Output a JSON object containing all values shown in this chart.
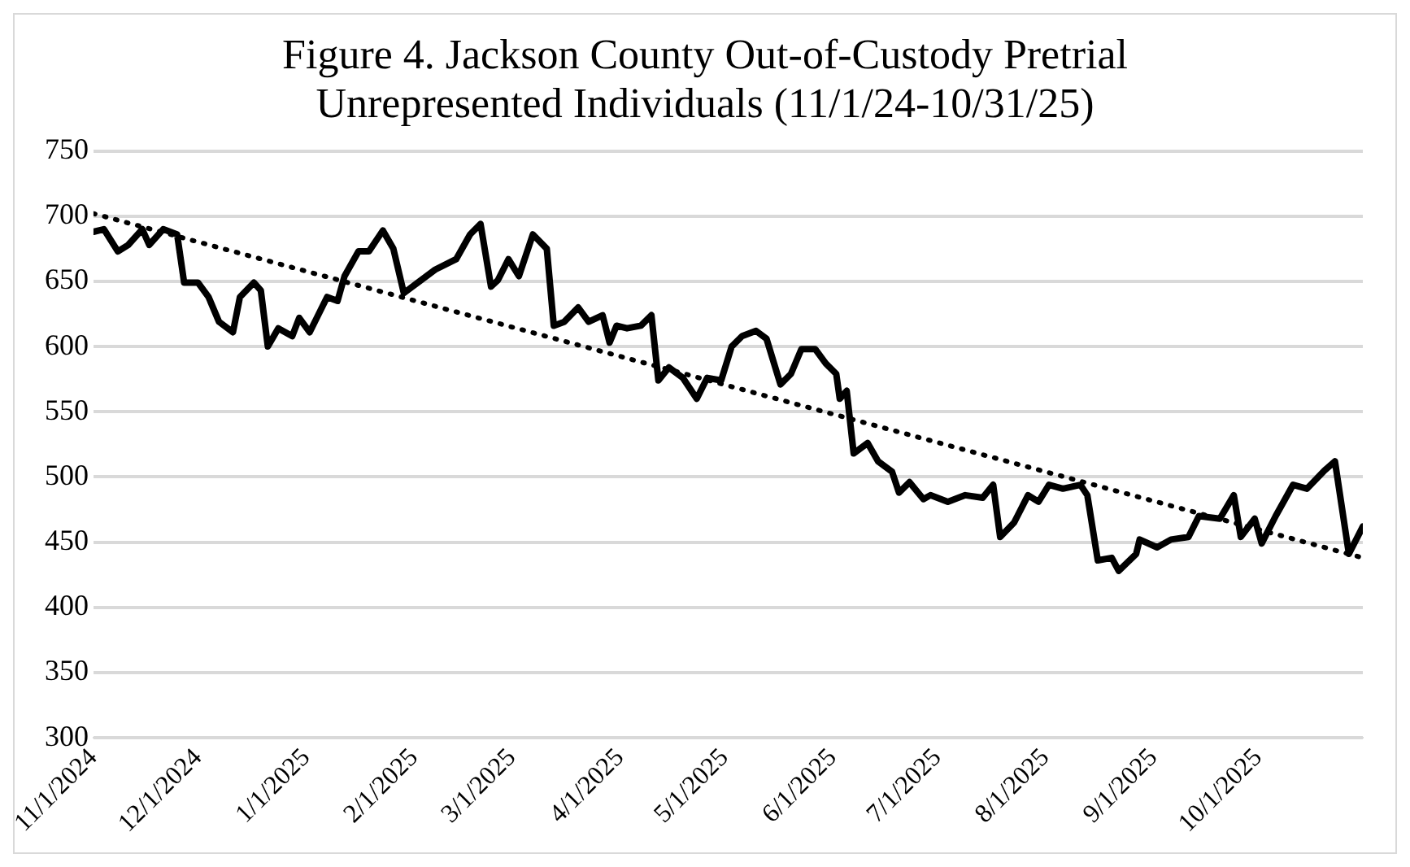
{
  "chart_data": {
    "type": "line",
    "title": "Figure 4. Jackson County Out-of-Custody Pretrial Unrepresented Individuals (11/1/24-10/31/25)",
    "xlim": [
      "2024-11-01",
      "2025-10-31"
    ],
    "xticks": [
      {
        "value": "2024-11-01",
        "label": "11/1/2024"
      },
      {
        "value": "2024-12-01",
        "label": "12/1/2024"
      },
      {
        "value": "2025-01-01",
        "label": "1/1/2025"
      },
      {
        "value": "2025-02-01",
        "label": "2/1/2025"
      },
      {
        "value": "2025-03-01",
        "label": "3/1/2025"
      },
      {
        "value": "2025-04-01",
        "label": "4/1/2025"
      },
      {
        "value": "2025-05-01",
        "label": "5/1/2025"
      },
      {
        "value": "2025-06-01",
        "label": "6/1/2025"
      },
      {
        "value": "2025-07-01",
        "label": "7/1/2025"
      },
      {
        "value": "2025-08-01",
        "label": "8/1/2025"
      },
      {
        "value": "2025-09-01",
        "label": "9/1/2025"
      },
      {
        "value": "2025-10-01",
        "label": "10/1/2025"
      }
    ],
    "ylim": [
      300,
      750
    ],
    "yticks": [
      300,
      350,
      400,
      450,
      500,
      550,
      600,
      650,
      700,
      750
    ],
    "grid": "y",
    "legend": false,
    "marker": "none",
    "series": [
      {
        "color": "#000000",
        "line_style": "solid",
        "x": [
          "2024-11-01",
          "2024-11-04",
          "2024-11-08",
          "2024-11-11",
          "2024-11-15",
          "2024-11-17",
          "2024-11-21",
          "2024-11-25",
          "2024-11-27",
          "2024-12-01",
          "2024-12-04",
          "2024-12-07",
          "2024-12-11",
          "2024-12-13",
          "2024-12-17",
          "2024-12-19",
          "2024-12-21",
          "2024-12-24",
          "2024-12-28",
          "2024-12-30",
          "2025-01-02",
          "2025-01-07",
          "2025-01-10",
          "2025-01-12",
          "2025-01-16",
          "2025-01-19",
          "2025-01-23",
          "2025-01-26",
          "2025-01-29",
          "2025-02-02",
          "2025-02-07",
          "2025-02-13",
          "2025-02-17",
          "2025-02-20",
          "2025-02-23",
          "2025-02-25",
          "2025-02-28",
          "2025-03-03",
          "2025-03-07",
          "2025-03-11",
          "2025-03-13",
          "2025-03-16",
          "2025-03-20",
          "2025-03-23",
          "2025-03-27",
          "2025-03-29",
          "2025-03-31",
          "2025-04-03",
          "2025-04-07",
          "2025-04-10",
          "2025-04-12",
          "2025-04-15",
          "2025-04-19",
          "2025-04-23",
          "2025-04-26",
          "2025-04-30",
          "2025-05-03",
          "2025-05-06",
          "2025-05-10",
          "2025-05-13",
          "2025-05-17",
          "2025-05-20",
          "2025-05-23",
          "2025-05-27",
          "2025-05-30",
          "2025-06-02",
          "2025-06-03",
          "2025-06-05",
          "2025-06-07",
          "2025-06-11",
          "2025-06-14",
          "2025-06-18",
          "2025-06-20",
          "2025-06-23",
          "2025-06-27",
          "2025-06-29",
          "2025-07-04",
          "2025-07-09",
          "2025-07-14",
          "2025-07-17",
          "2025-07-19",
          "2025-07-23",
          "2025-07-27",
          "2025-07-30",
          "2025-08-02",
          "2025-08-06",
          "2025-08-11",
          "2025-08-13",
          "2025-08-16",
          "2025-08-20",
          "2025-08-22",
          "2025-08-27",
          "2025-08-28",
          "2025-09-02",
          "2025-09-06",
          "2025-09-11",
          "2025-09-14",
          "2025-09-20",
          "2025-09-24",
          "2025-09-26",
          "2025-09-30",
          "2025-10-02",
          "2025-10-06",
          "2025-10-11",
          "2025-10-15",
          "2025-10-20",
          "2025-10-23",
          "2025-10-27",
          "2025-10-31"
        ],
        "values": [
          688,
          690,
          673,
          678,
          690,
          678,
          690,
          686,
          649,
          649,
          638,
          619,
          611,
          638,
          649,
          643,
          600,
          614,
          608,
          622,
          611,
          638,
          635,
          654,
          673,
          673,
          689,
          675,
          641,
          649,
          659,
          667,
          686,
          694,
          646,
          651,
          667,
          654,
          686,
          675,
          616,
          619,
          630,
          619,
          624,
          603,
          616,
          614,
          616,
          624,
          574,
          584,
          576,
          560,
          576,
          574,
          600,
          608,
          612,
          606,
          571,
          579,
          598,
          598,
          587,
          579,
          560,
          566,
          518,
          526,
          512,
          504,
          488,
          496,
          483,
          486,
          481,
          486,
          484,
          494,
          454,
          465,
          486,
          481,
          494,
          491,
          494,
          486,
          436,
          438,
          428,
          441,
          452,
          446,
          452,
          454,
          470,
          468,
          486,
          454,
          468,
          449,
          470,
          494,
          491,
          505,
          512,
          441,
          462
        ]
      },
      {
        "type": "line",
        "color": "#000000",
        "line_style": "dotted",
        "x": [
          "2024-11-01",
          "2025-10-31"
        ],
        "values": [
          702,
          438
        ]
      }
    ]
  }
}
